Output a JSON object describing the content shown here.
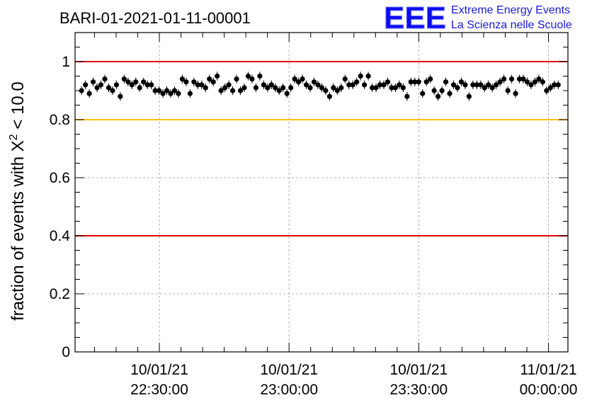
{
  "chart_data": {
    "type": "scatter",
    "title": "BARI-01-2021-01-11-00001",
    "ylabel_prefix": "fraction of events with",
    "ylabel_symbol": "X",
    "ylabel_exponent": "2",
    "ylabel_suffix": "< 10.0",
    "ylim": [
      0,
      1.1
    ],
    "yticks": [
      {
        "value": 0,
        "label": "0"
      },
      {
        "value": 0.2,
        "label": "0.2"
      },
      {
        "value": 0.4,
        "label": "0.4"
      },
      {
        "value": 0.6,
        "label": "0.6"
      },
      {
        "value": 0.8,
        "label": "0.8"
      },
      {
        "value": 1,
        "label": "1"
      }
    ],
    "xlim_minutes": [
      -13,
      63
    ],
    "xticks": [
      {
        "minute": 0,
        "date": "10/01/21",
        "time": "22:30:00"
      },
      {
        "minute": 20,
        "date": "10/01/21",
        "time": "23:00:00"
      },
      {
        "minute": 40,
        "date": "10/01/21",
        "time": "23:30:00"
      },
      {
        "minute": 60,
        "date": "11/01/21",
        "time": "00:00:00"
      }
    ],
    "grid": true,
    "reference_lines": [
      {
        "y": 1.0,
        "color": "#e00000"
      },
      {
        "y": 0.8,
        "color": "#ffc000"
      },
      {
        "y": 0.4,
        "color": "#e00000"
      }
    ],
    "marker_color": "#000000",
    "error_bar": 0.015,
    "y": [
      0.9,
      0.92,
      0.89,
      0.93,
      0.91,
      0.92,
      0.94,
      0.91,
      0.9,
      0.92,
      0.88,
      0.94,
      0.93,
      0.92,
      0.93,
      0.91,
      0.93,
      0.92,
      0.92,
      0.9,
      0.9,
      0.89,
      0.9,
      0.89,
      0.9,
      0.89,
      0.94,
      0.93,
      0.89,
      0.93,
      0.92,
      0.92,
      0.91,
      0.94,
      0.93,
      0.95,
      0.9,
      0.91,
      0.92,
      0.9,
      0.94,
      0.9,
      0.91,
      0.95,
      0.94,
      0.91,
      0.95,
      0.92,
      0.91,
      0.92,
      0.91,
      0.9,
      0.91,
      0.89,
      0.91,
      0.94,
      0.93,
      0.94,
      0.92,
      0.91,
      0.93,
      0.92,
      0.91,
      0.9,
      0.88,
      0.91,
      0.9,
      0.91,
      0.94,
      0.92,
      0.92,
      0.93,
      0.95,
      0.92,
      0.95,
      0.91,
      0.91,
      0.92,
      0.92,
      0.93,
      0.91,
      0.91,
      0.92,
      0.91,
      0.88,
      0.93,
      0.93,
      0.93,
      0.89,
      0.93,
      0.94,
      0.9,
      0.88,
      0.9,
      0.93,
      0.89,
      0.92,
      0.91,
      0.93,
      0.92,
      0.88,
      0.92,
      0.92,
      0.92,
      0.91,
      0.92,
      0.91,
      0.92,
      0.93,
      0.94,
      0.9,
      0.94,
      0.89,
      0.94,
      0.94,
      0.93,
      0.92,
      0.93,
      0.94,
      0.93,
      0.9,
      0.91,
      0.92,
      0.92
    ]
  },
  "logo": {
    "letters": "EEE",
    "line1": "Extreme Energy Events",
    "line2": "La Scienza nelle Scuole"
  }
}
